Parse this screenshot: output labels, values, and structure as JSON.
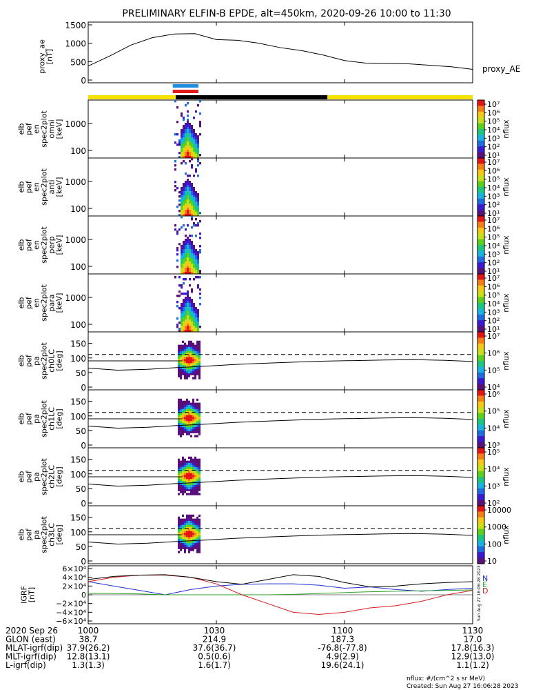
{
  "title": "PRELIMINARY ELFIN-B EPDE, alt=450km, 2020-09-26 10:00 to 11:30",
  "chart_data": [
    {
      "panel": "proxy_ae",
      "type": "line",
      "ylabel_lines": [
        "proxy_ae",
        "[nT]"
      ],
      "legend": "proxy_AE",
      "yticks": [
        "1500",
        "1000",
        "500",
        "0"
      ],
      "ylim": [
        0,
        1500
      ],
      "x_minutes": [
        0,
        5,
        10,
        15,
        20,
        25,
        30,
        35,
        40,
        45,
        50,
        55,
        60,
        65,
        70,
        75,
        80,
        85,
        90
      ],
      "values": [
        380,
        650,
        950,
        1150,
        1250,
        1260,
        1100,
        1080,
        1000,
        880,
        800,
        680,
        530,
        460,
        450,
        440,
        400,
        360,
        290
      ],
      "color": "#000000"
    },
    {
      "panel": "orbit_bars",
      "type": "bar",
      "segments": [
        {
          "start_min": 0,
          "end_min": 20.5,
          "color": "#f5e000"
        },
        {
          "start_min": 20.5,
          "end_min": 56,
          "color": "#000000"
        },
        {
          "start_min": 56,
          "end_min": 90,
          "color": "#f5e000"
        }
      ],
      "science_zone": {
        "start_min": 19.8,
        "end_min": 25.8,
        "colors": [
          "#1e8fe0",
          "#e01b1b"
        ]
      }
    },
    {
      "panel": "spectra",
      "type": "heatmap",
      "panels": [
        {
          "ylabel_lines": [
            "elb",
            "pef",
            "en",
            "spec2plot",
            "omni",
            "[keV]"
          ],
          "yticks": [
            "1000",
            "100"
          ],
          "cbar_ticks": [
            "10⁷",
            "10⁶",
            "10⁵",
            "10⁴",
            "10³",
            "10²",
            "10¹"
          ],
          "cbar_label": "nflux"
        },
        {
          "ylabel_lines": [
            "elb",
            "pef",
            "en",
            "spec2plot",
            "anti",
            "[keV]"
          ],
          "yticks": [
            "1000",
            "100"
          ],
          "cbar_ticks": [
            "10⁷",
            "10⁶",
            "10⁵",
            "10⁴",
            "10³",
            "10²",
            "10¹"
          ],
          "cbar_label": "nflux"
        },
        {
          "ylabel_lines": [
            "elb",
            "pef",
            "en",
            "spec2plot",
            "perp",
            "[keV]"
          ],
          "yticks": [
            "1000",
            "100"
          ],
          "cbar_ticks": [
            "10⁷",
            "10⁶",
            "10⁵",
            "10⁴",
            "10³",
            "10²",
            "10¹"
          ],
          "cbar_label": "nflux"
        },
        {
          "ylabel_lines": [
            "elb",
            "pef",
            "en",
            "spec2plot",
            "para",
            "[keV]"
          ],
          "yticks": [
            "1000",
            "100"
          ],
          "cbar_ticks": [
            "10⁷",
            "10⁶",
            "10⁵",
            "10⁴",
            "10³",
            "10²",
            "10¹"
          ],
          "cbar_label": "nflux"
        }
      ]
    },
    {
      "panel": "pitch_angle",
      "type": "heatmap",
      "yticks": [
        "150",
        "100",
        "50",
        "0"
      ],
      "ylim": [
        0,
        180
      ],
      "loss_cone_deg": [
        65,
        58,
        61,
        67,
        72,
        78,
        82,
        86,
        89,
        91,
        93,
        94,
        92,
        88
      ],
      "panels": [
        {
          "ylabel_lines": [
            "elb",
            "pef",
            "pa",
            "spec2plot",
            "ch0LC",
            "[deg]"
          ],
          "cbar_ticks": [
            "10⁷",
            "10⁶",
            "10⁵",
            "10⁴"
          ],
          "cbar_label": "nflux"
        },
        {
          "ylabel_lines": [
            "elb",
            "pef",
            "pa",
            "spec2plot",
            "ch1LC",
            "[deg]"
          ],
          "cbar_ticks": [
            "10⁶",
            "10⁵",
            "10⁴",
            "10³"
          ],
          "cbar_label": "nflux"
        },
        {
          "ylabel_lines": [
            "elb",
            "pef",
            "pa",
            "spec2plot",
            "ch2LC",
            "[deg]"
          ],
          "cbar_ticks": [
            "10⁵",
            "10⁴",
            "10³",
            "10²"
          ],
          "cbar_label": "nflux"
        },
        {
          "ylabel_lines": [
            "elb",
            "pef",
            "pa",
            "spec2plot",
            "ch3LC",
            "[deg]"
          ],
          "cbar_ticks": [
            "10000",
            "1000",
            "100",
            "10"
          ],
          "cbar_label": "nflux"
        }
      ]
    },
    {
      "panel": "igrf",
      "type": "line",
      "ylabel_lines": [
        "IGRF",
        "[nT]"
      ],
      "yticks": [
        "6×10⁴",
        "4×10⁴",
        "2×10⁴",
        "0",
        "−2×10⁴",
        "−4×10⁴",
        "−6×10⁴"
      ],
      "ylim": [
        -60000,
        60000
      ],
      "legend": [
        "N",
        "E",
        "D"
      ],
      "legend_colors": [
        "#1f2fd0",
        "#2aa02a",
        "#d41a1a"
      ],
      "x_minutes": [
        0,
        6,
        12,
        18,
        24,
        30,
        36,
        42,
        48,
        54,
        60,
        66,
        72,
        78,
        84,
        90
      ],
      "series": [
        {
          "name": "N",
          "color": "#1f2fd0",
          "values": [
            30000,
            20000,
            10000,
            0,
            12000,
            20000,
            24000,
            25000,
            25000,
            22000,
            15000,
            18000,
            12000,
            8000,
            12000,
            15000
          ]
        },
        {
          "name": "E",
          "color": "#2aa02a",
          "values": [
            3000,
            3000,
            2000,
            0,
            0,
            0,
            0,
            0,
            1000,
            3000,
            5000,
            7000,
            8000,
            9000,
            10000,
            11000
          ]
        },
        {
          "name": "D",
          "color": "#d41a1a",
          "values": [
            30000,
            40000,
            45000,
            45000,
            40000,
            25000,
            0,
            -20000,
            -40000,
            -45000,
            -40000,
            -30000,
            -25000,
            -15000,
            0,
            10000
          ]
        },
        {
          "name": "",
          "color": "#000000",
          "values": [
            35000,
            42000,
            45000,
            46000,
            40000,
            30000,
            24000,
            35000,
            46000,
            42000,
            28000,
            18000,
            20000,
            25000,
            28000,
            30000
          ]
        }
      ],
      "stamp": "Sun Aug 27 16:06:28 2023"
    }
  ],
  "xaxis": {
    "time_ticks": [
      "1000",
      "1030",
      "1100",
      "1130"
    ],
    "rows": [
      {
        "label": "2020 Sep 26",
        "values": [
          "1000",
          "1030",
          "1100",
          "1130"
        ]
      },
      {
        "label": "GLON (east)",
        "values": [
          "38.7",
          "214.9",
          "187.3",
          "17.0"
        ]
      },
      {
        "label": "MLAT-igrf(dip)",
        "values": [
          "37.9(26.2)",
          "37.6(36.7)",
          "-76.8(-77.8)",
          "17.8(16.3)"
        ]
      },
      {
        "label": "MLT-igrf(dip)",
        "values": [
          "12.8(13.1)",
          "0.5(0.6)",
          "4.9(2.9)",
          "12.9(13.0)"
        ]
      },
      {
        "label": "L-igrf(dip)",
        "values": [
          "1.3(1.3)",
          "1.6(1.7)",
          "19.6(24.1)",
          "1.1(1.2)"
        ]
      }
    ]
  },
  "footer": {
    "units": "nflux: #/(cm^2 s sr MeV)",
    "created": "Created: Sun Aug 27 16:06:28 2023"
  }
}
